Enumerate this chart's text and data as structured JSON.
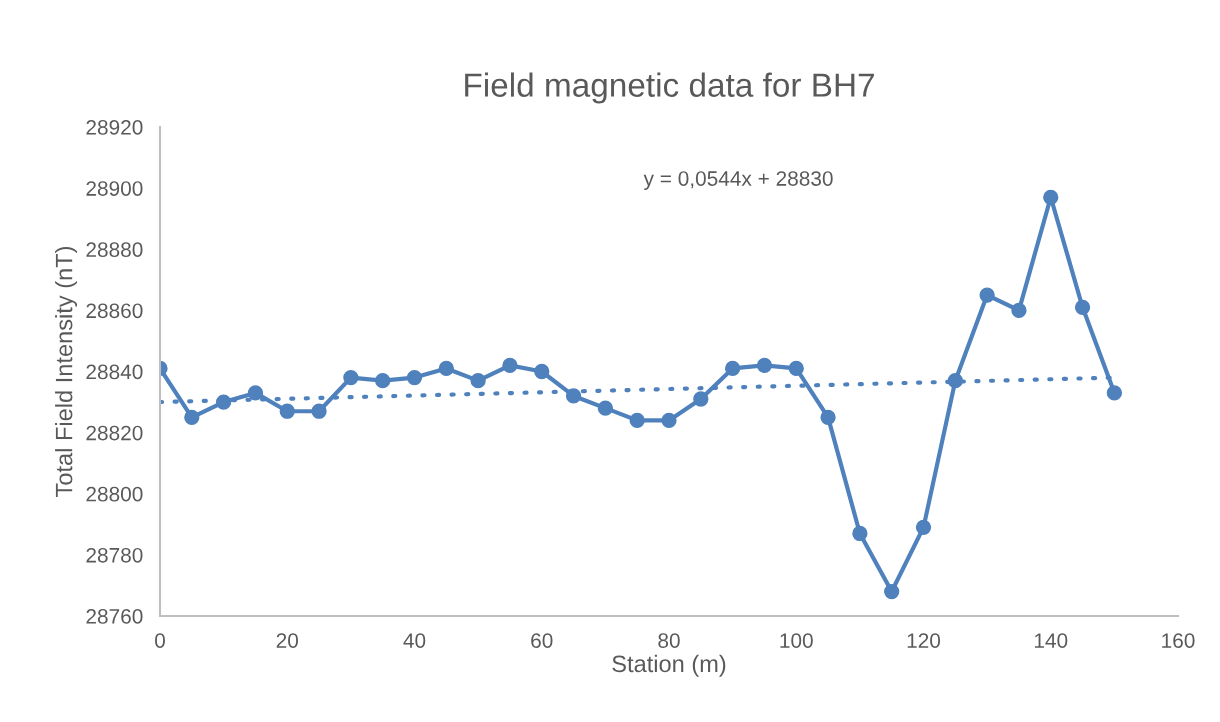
{
  "chart_data": {
    "type": "line",
    "title": "Field magnetic data for BH7",
    "xlabel": "Station (m)",
    "ylabel": "Total Field Intensity (nT)",
    "x": [
      0,
      5,
      10,
      15,
      20,
      25,
      30,
      35,
      40,
      45,
      50,
      55,
      60,
      65,
      70,
      75,
      80,
      85,
      90,
      95,
      100,
      105,
      110,
      115,
      120,
      125,
      130,
      135,
      140,
      145,
      150
    ],
    "series": [
      {
        "color": "#4f81bd",
        "marker": "circle",
        "line_style": "solid",
        "values": [
          28841,
          28825,
          28830,
          28833,
          28827,
          28827,
          28838,
          28837,
          28838,
          28841,
          28837,
          28842,
          28840,
          28832,
          28828,
          28824,
          28824,
          28831,
          28841,
          28842,
          28841,
          28825,
          28787,
          28768,
          28789,
          28837,
          28865,
          28860,
          28897,
          28861,
          28833
        ]
      },
      {
        "color": "#4f81bd",
        "marker": "none",
        "line_style": "dotted",
        "x": [
          0,
          150
        ],
        "values": [
          28830,
          28838
        ]
      }
    ],
    "annotations": [
      "y = 0,0544x + 28830"
    ],
    "xlim": [
      0,
      160
    ],
    "xticks": [
      0,
      20,
      40,
      60,
      80,
      100,
      120,
      140,
      160
    ],
    "ylim": [
      28760,
      28920
    ],
    "yticks": [
      28760,
      28780,
      28800,
      28820,
      28840,
      28860,
      28880,
      28900,
      28920
    ],
    "grid": false,
    "legend": false
  }
}
